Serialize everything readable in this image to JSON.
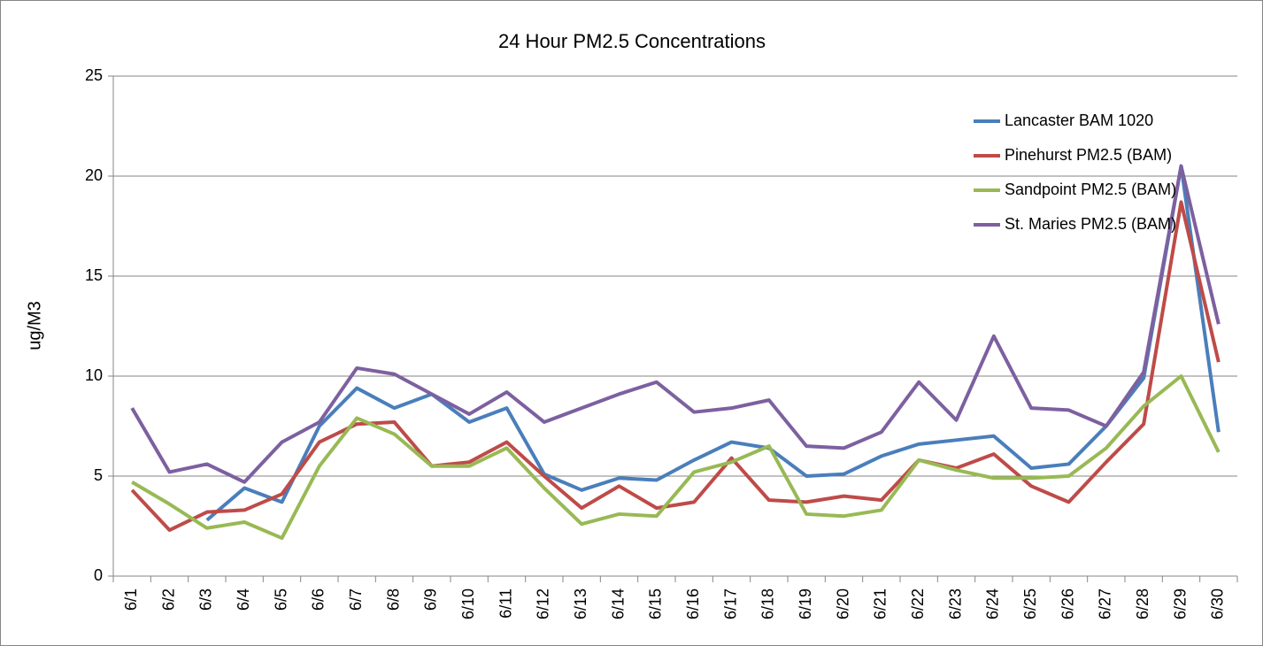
{
  "chart_data": {
    "type": "line",
    "title": "24 Hour PM2.5 Concentrations",
    "y_label": "ug/M3",
    "categories": [
      "6/1",
      "6/2",
      "6/3",
      "6/4",
      "6/5",
      "6/6",
      "6/7",
      "6/8",
      "6/9",
      "6/10",
      "6/11",
      "6/12",
      "6/13",
      "6/14",
      "6/15",
      "6/16",
      "6/17",
      "6/18",
      "6/19",
      "6/20",
      "6/21",
      "6/22",
      "6/23",
      "6/24",
      "6/25",
      "6/26",
      "6/27",
      "6/28",
      "6/29",
      "6/30"
    ],
    "series": [
      {
        "name": "Lancaster BAM 1020",
        "color": "#4a7ebb",
        "values": [
          null,
          null,
          2.8,
          4.4,
          3.7,
          7.5,
          9.4,
          8.4,
          9.1,
          7.7,
          8.4,
          5.1,
          4.3,
          4.9,
          4.8,
          5.8,
          6.7,
          6.4,
          5.0,
          5.1,
          6.0,
          6.6,
          6.8,
          7.0,
          5.4,
          5.6,
          7.5,
          9.9,
          20.5,
          7.2
        ]
      },
      {
        "name": "Pinehurst PM2.5 (BAM)",
        "color": "#be4b48",
        "values": [
          4.3,
          2.3,
          3.2,
          3.3,
          4.1,
          6.7,
          7.6,
          7.7,
          5.5,
          5.7,
          6.7,
          5.0,
          3.4,
          4.5,
          3.4,
          3.7,
          5.9,
          3.8,
          3.7,
          4.0,
          3.8,
          5.8,
          5.4,
          6.1,
          4.5,
          3.7,
          5.7,
          7.6,
          18.7,
          10.7
        ]
      },
      {
        "name": "Sandpoint PM2.5 (BAM)",
        "color": "#98b954",
        "values": [
          4.7,
          3.6,
          2.4,
          2.7,
          1.9,
          5.5,
          7.9,
          7.1,
          5.5,
          5.5,
          6.4,
          4.4,
          2.6,
          3.1,
          3.0,
          5.2,
          5.7,
          6.5,
          3.1,
          3.0,
          3.3,
          5.8,
          5.3,
          4.9,
          4.9,
          5.0,
          6.4,
          8.5,
          10.0,
          6.2
        ]
      },
      {
        "name": "St. Maries PM2.5 (BAM)",
        "color": "#7d60a0",
        "values": [
          8.4,
          5.2,
          5.6,
          4.7,
          6.7,
          7.7,
          10.4,
          10.1,
          9.1,
          8.1,
          9.2,
          7.7,
          8.4,
          9.1,
          9.7,
          8.2,
          8.4,
          8.8,
          6.5,
          6.4,
          7.2,
          9.7,
          7.8,
          12.0,
          8.4,
          8.3,
          7.5,
          10.2,
          20.5,
          12.6
        ]
      }
    ],
    "ylim": [
      0,
      25
    ],
    "yticks": [
      0,
      5,
      10,
      15,
      20,
      25
    ],
    "grid": true,
    "legend": "upper right"
  }
}
